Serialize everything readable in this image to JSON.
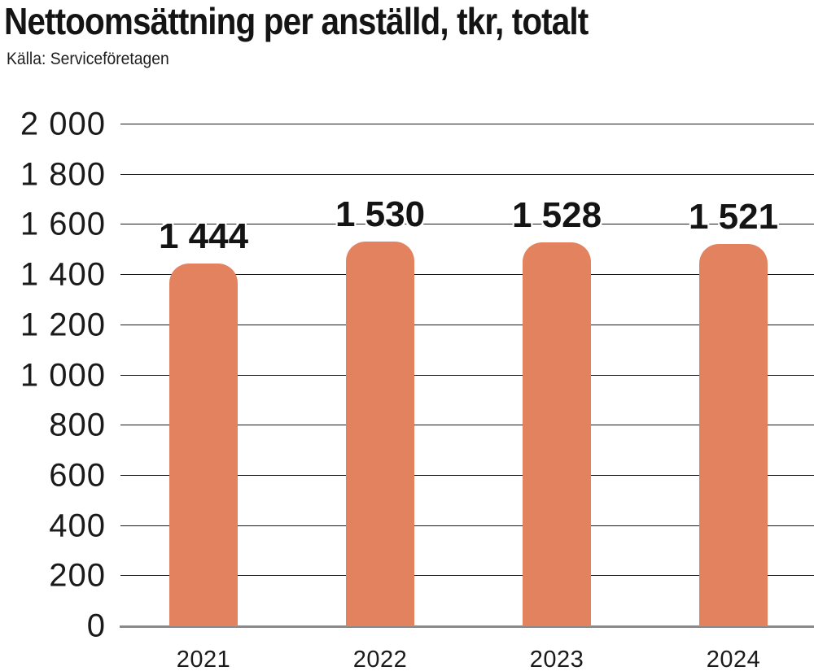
{
  "title": "Nettoomsättning per anställd, tkr, totalt",
  "source": "Källa: Serviceföretagen",
  "chart_data": {
    "type": "bar",
    "categories": [
      "2021",
      "2022",
      "2023",
      "2024"
    ],
    "values": [
      1444,
      1530,
      1528,
      1521
    ],
    "value_labels": [
      "1 444",
      "1 530",
      "1 528",
      "1 521"
    ],
    "ylim": [
      0,
      2000
    ],
    "ytick_step": 200,
    "ytick_values": [
      2000,
      1800,
      1600,
      1400,
      1200,
      1000,
      800,
      600,
      400,
      200,
      0
    ],
    "ytick_labels": [
      "2 000",
      "1 800",
      "1 600",
      "1 400",
      "1 200",
      "1 000",
      "800",
      "600",
      "400",
      "200",
      "0"
    ],
    "grid": true,
    "legend": "none",
    "bar_color": "#E3825E",
    "gridline_color": "#1a1a1a",
    "baseline_color": "#8a8a8a",
    "text_color": "#141414"
  }
}
